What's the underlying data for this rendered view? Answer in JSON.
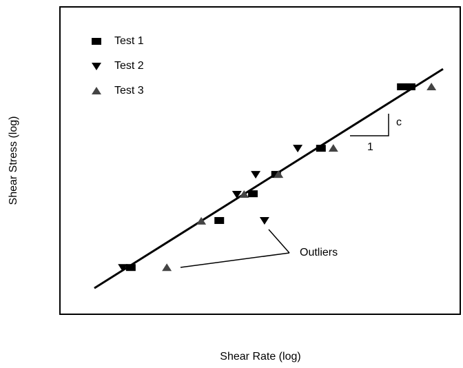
{
  "chart_data": {
    "type": "scatter",
    "x_label": "Shear Rate (log)",
    "y_label": "Shear Stress (log)",
    "xlim": [
      0,
      100
    ],
    "ylim": [
      0,
      100
    ],
    "series": [
      {
        "name": "Test 1",
        "color": "#000000",
        "marker": "square",
        "x": [
          17.7,
          39.8,
          48.2,
          54.0,
          65.2,
          85.4,
          87.6
        ],
        "values": [
          15.2,
          30.5,
          39.2,
          45.5,
          54.0,
          74.0,
          74.0
        ]
      },
      {
        "name": "Test 2",
        "color": "#000000",
        "marker": "triangle-down",
        "x": [
          15.7,
          44.2,
          48.9,
          51.1,
          59.4
        ],
        "values": [
          15.2,
          39.0,
          45.5,
          30.5,
          54.0
        ]
      },
      {
        "name": "Test 3",
        "color": "#444444",
        "marker": "triangle-up",
        "x": [
          26.7,
          35.3,
          46.0,
          54.6,
          68.3,
          92.8
        ],
        "values": [
          15.2,
          30.3,
          39.0,
          45.5,
          54.0,
          74.0
        ]
      }
    ],
    "fit": {
      "x": [
        8.6,
        95.7
      ],
      "values": [
        8.5,
        79.8
      ]
    },
    "slope_labels": {
      "rise": "c",
      "run": "1"
    },
    "annotation": "Outliers"
  }
}
